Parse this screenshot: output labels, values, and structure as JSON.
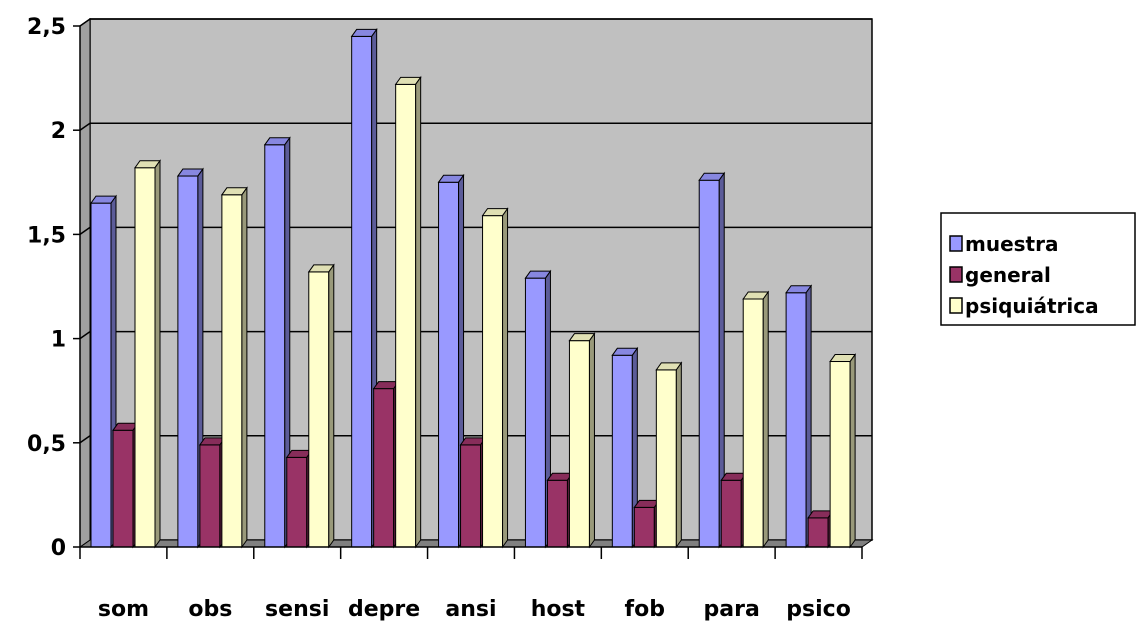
{
  "chart_data": {
    "type": "bar",
    "categories": [
      "som",
      "obs",
      "sensi",
      "depre",
      "ansi",
      "host",
      "fob",
      "para",
      "psico"
    ],
    "series": [
      {
        "name": "muestra",
        "values": [
          1.65,
          1.78,
          1.93,
          2.45,
          1.75,
          1.29,
          0.92,
          1.76,
          1.22
        ],
        "color": "#9999ff"
      },
      {
        "name": "general",
        "values": [
          0.56,
          0.49,
          0.43,
          0.76,
          0.49,
          0.32,
          0.19,
          0.32,
          0.14
        ],
        "color": "#993366"
      },
      {
        "name": "psiquiátrica",
        "values": [
          1.82,
          1.69,
          1.32,
          2.22,
          1.59,
          0.99,
          0.85,
          1.19,
          0.89
        ],
        "color": "#ffffcc"
      }
    ],
    "yticks": [
      "0",
      "0,5",
      "1",
      "1,5",
      "2",
      "2,5"
    ],
    "ylim": [
      0,
      2.5
    ],
    "grid": true,
    "legend": "right",
    "background": "#c0c0c0"
  }
}
